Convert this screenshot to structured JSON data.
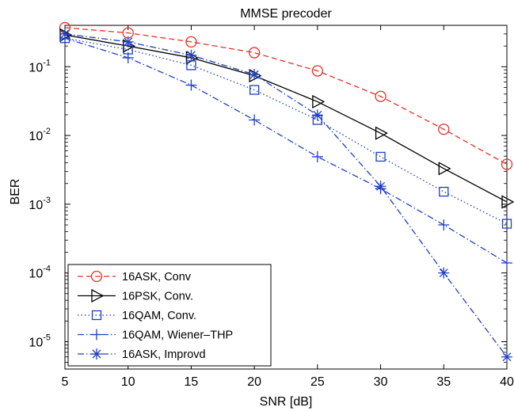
{
  "chart_data": {
    "type": "line",
    "title": "MMSE precoder",
    "xlabel": "SNR [dB]",
    "ylabel": "BER",
    "x": [
      5,
      10,
      15,
      20,
      25,
      30,
      35,
      40
    ],
    "xlim": [
      5,
      40
    ],
    "xticks": [
      "5",
      "10",
      "15",
      "20",
      "25",
      "30",
      "35",
      "40"
    ],
    "ylim": [
      4e-06,
      0.4
    ],
    "yscale": "log",
    "yticks": [
      {
        "base": "10",
        "exp": "-5",
        "value": 1e-05
      },
      {
        "base": "10",
        "exp": "-4",
        "value": 0.0001
      },
      {
        "base": "10",
        "exp": "-3",
        "value": 0.001
      },
      {
        "base": "10",
        "exp": "-2",
        "value": 0.01
      },
      {
        "base": "10",
        "exp": "-1",
        "value": 0.1
      }
    ],
    "grid": false,
    "legend_position": "bottom-left",
    "series": [
      {
        "name": "16ASK, Conv",
        "color": "#e8302a",
        "dash": "dashed",
        "marker": "circle",
        "values": [
          0.37,
          0.31,
          0.23,
          0.16,
          0.087,
          0.037,
          0.0123,
          0.0038
        ]
      },
      {
        "name": "16PSK, Conv.",
        "color": "#000000",
        "dash": "solid",
        "marker": "triangle-right",
        "values": [
          0.29,
          0.2,
          0.135,
          0.074,
          0.031,
          0.0108,
          0.0033,
          0.00108
        ]
      },
      {
        "name": "16QAM, Conv.",
        "color": "#1f3fc4",
        "dash": "dotted",
        "marker": "square",
        "values": [
          0.26,
          0.178,
          0.105,
          0.046,
          0.0168,
          0.0049,
          0.00152,
          0.00052
        ]
      },
      {
        "name": "16QAM, Wiener–THP",
        "color": "#1f3fc4",
        "dash": "dashdot",
        "marker": "plus",
        "values": [
          0.26,
          0.135,
          0.054,
          0.0168,
          0.0049,
          0.00168,
          0.0005,
          0.00014
        ]
      },
      {
        "name": "16ASK, Improvd",
        "color": "#1f3fc4",
        "dash": "dashdot",
        "marker": "star",
        "values": [
          0.3,
          0.23,
          0.147,
          0.077,
          0.0198,
          0.00182,
          0.0001,
          6e-06
        ]
      }
    ]
  }
}
